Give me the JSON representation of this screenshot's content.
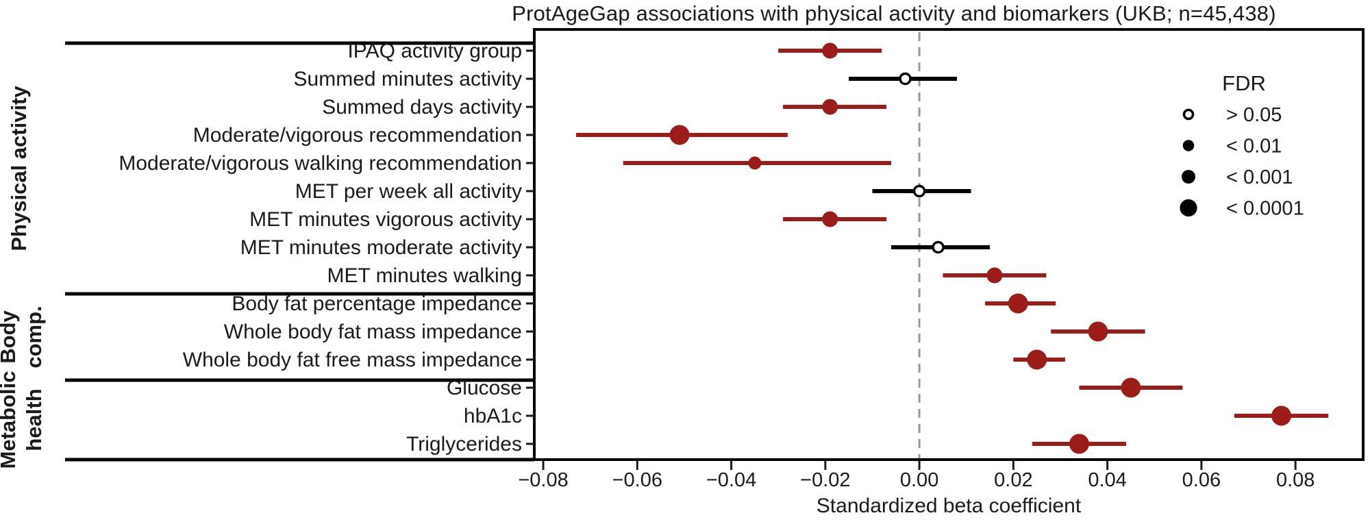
{
  "figure": {
    "title": "ProtAgeGap associations with physical activity and biomarkers (UKB; n=45,438)",
    "xlabel": "Standardized beta coefficient"
  },
  "chart_data": {
    "type": "scatter",
    "subtype": "forest-plot",
    "title": "ProtAgeGap associations with physical activity and biomarkers (UKB; n=45,438)",
    "xlabel": "Standardized beta coefficient",
    "xlim": [
      -0.0819,
      0.0944
    ],
    "xticks": [
      -0.08,
      -0.06,
      -0.04,
      -0.02,
      0.0,
      0.02,
      0.04,
      0.06,
      0.08
    ],
    "xtick_labels": [
      "−0.08",
      "−0.06",
      "−0.04",
      "−0.02",
      "0.00",
      "0.02",
      "0.04",
      "0.06",
      "0.08"
    ],
    "zero_line": 0.0,
    "grid": false,
    "legend": {
      "title": "FDR",
      "position": "inside top-right",
      "entries": [
        {
          "label": "> 0.05",
          "filled": false
        },
        {
          "label": "< 0.01",
          "filled": true
        },
        {
          "label": "< 0.001",
          "filled": true
        },
        {
          "label": "< 0.0001",
          "filled": true
        }
      ]
    },
    "fdr_sizes": {
      "> 0.05": 15,
      "< 0.01": 19,
      "< 0.001": 23,
      "< 0.0001": 29
    },
    "sections": [
      {
        "label": "Physical activity",
        "lines": [
          "Physical activity"
        ],
        "row_count": 9
      },
      {
        "label": "Body comp.",
        "lines": [
          "Body",
          "comp."
        ],
        "row_count": 3
      },
      {
        "label": "Metabolic health",
        "lines": [
          "Metabolic",
          "health"
        ],
        "row_count": 3
      }
    ],
    "rows": [
      {
        "section": "Physical activity",
        "label": "IPAQ activity group",
        "beta": -0.019,
        "ci": [
          -0.03,
          -0.008
        ],
        "fdr": "< 0.001"
      },
      {
        "section": "Physical activity",
        "label": "Summed minutes activity",
        "beta": -0.003,
        "ci": [
          -0.015,
          0.008
        ],
        "fdr": "> 0.05"
      },
      {
        "section": "Physical activity",
        "label": "Summed days activity",
        "beta": -0.019,
        "ci": [
          -0.029,
          -0.007
        ],
        "fdr": "< 0.001"
      },
      {
        "section": "Physical activity",
        "label": "Moderate/vigorous recommendation",
        "beta": -0.051,
        "ci": [
          -0.073,
          -0.028
        ],
        "fdr": "< 0.0001"
      },
      {
        "section": "Physical activity",
        "label": "Moderate/vigorous walking recommendation",
        "beta": -0.035,
        "ci": [
          -0.063,
          -0.006
        ],
        "fdr": "< 0.01"
      },
      {
        "section": "Physical activity",
        "label": "MET per week all activity",
        "beta": 0.0,
        "ci": [
          -0.01,
          0.011
        ],
        "fdr": "> 0.05"
      },
      {
        "section": "Physical activity",
        "label": "MET minutes vigorous activity",
        "beta": -0.019,
        "ci": [
          -0.029,
          -0.007
        ],
        "fdr": "< 0.001"
      },
      {
        "section": "Physical activity",
        "label": "MET minutes moderate activity",
        "beta": 0.004,
        "ci": [
          -0.006,
          0.015
        ],
        "fdr": "> 0.05"
      },
      {
        "section": "Physical activity",
        "label": "MET minutes walking",
        "beta": 0.016,
        "ci": [
          0.005,
          0.027
        ],
        "fdr": "< 0.001"
      },
      {
        "section": "Body comp.",
        "label": "Body fat percentage impedance",
        "beta": 0.021,
        "ci": [
          0.014,
          0.029
        ],
        "fdr": "< 0.0001"
      },
      {
        "section": "Body comp.",
        "label": "Whole body fat mass impedance",
        "beta": 0.038,
        "ci": [
          0.028,
          0.048
        ],
        "fdr": "< 0.0001"
      },
      {
        "section": "Body comp.",
        "label": "Whole body fat free mass impedance",
        "beta": 0.025,
        "ci": [
          0.02,
          0.031
        ],
        "fdr": "< 0.0001"
      },
      {
        "section": "Metabolic health",
        "label": "Glucose",
        "beta": 0.045,
        "ci": [
          0.034,
          0.056
        ],
        "fdr": "< 0.0001"
      },
      {
        "section": "Metabolic health",
        "label": "hbA1c",
        "beta": 0.077,
        "ci": [
          0.067,
          0.087
        ],
        "fdr": "< 0.0001"
      },
      {
        "section": "Metabolic health",
        "label": "Triglycerides",
        "beta": 0.034,
        "ci": [
          0.024,
          0.044
        ],
        "fdr": "< 0.0001"
      }
    ],
    "colors": {
      "significant": "#9b1c19",
      "nonsignificant": "#000000",
      "open_marker_fill": "#ffffff",
      "zero_line": "#999999",
      "axis": "#1a1a1a"
    }
  }
}
